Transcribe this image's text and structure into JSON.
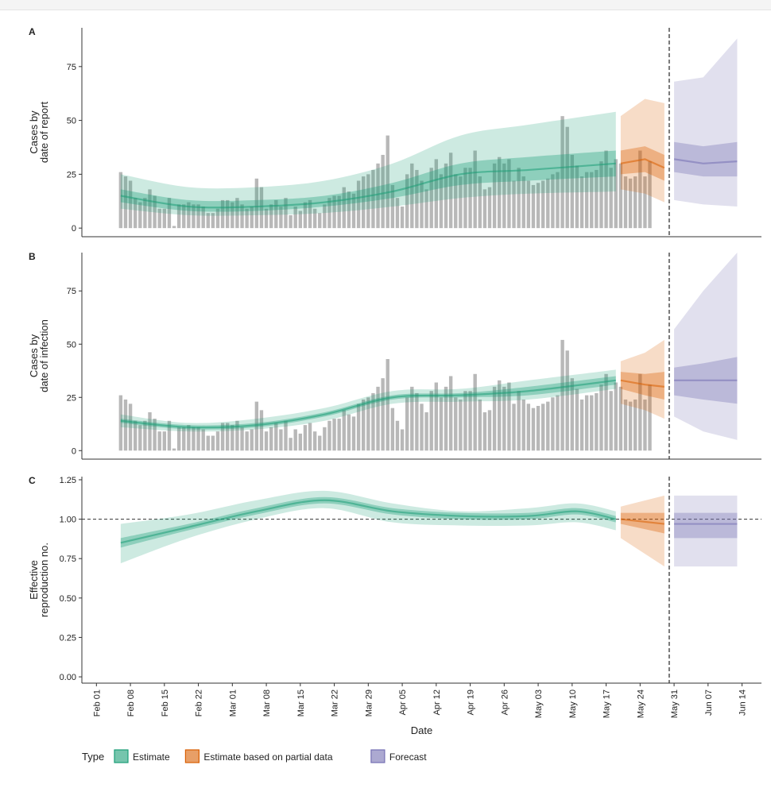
{
  "chart_data": {
    "type": "multi-panel",
    "xlabel": "Date",
    "x_ticks": [
      "Feb 01",
      "Feb 08",
      "Feb 15",
      "Feb 22",
      "Mar 01",
      "Mar 08",
      "Mar 15",
      "Mar 22",
      "Mar 29",
      "Apr 05",
      "Apr 12",
      "Apr 19",
      "Apr 26",
      "May 03",
      "May 10",
      "May 17",
      "May 24",
      "May 31",
      "Jun 07",
      "Jun 14"
    ],
    "x_range": [
      "2020-01-29",
      "2020-06-17"
    ],
    "estimate_date_range": [
      "2020-02-06",
      "2020-05-18"
    ],
    "partial_date_range": [
      "2020-05-19",
      "2020-05-28"
    ],
    "forecast_date_range": [
      "2020-05-30",
      "2020-06-12"
    ],
    "vertical_line_date": "2020-05-29",
    "legend": {
      "title": "Type",
      "position": "bottom",
      "items": [
        {
          "label": "Estimate",
          "color": "#1b9e77"
        },
        {
          "label": "Estimate based on partial data",
          "color": "#d95f02"
        },
        {
          "label": "Forecast",
          "color": "#7570b3"
        }
      ]
    },
    "panels": [
      {
        "id": "A",
        "ylabel": [
          "Cases by",
          "date of report"
        ],
        "ylim": [
          -4,
          93
        ],
        "yticks": [
          "0",
          "25",
          "50",
          "75"
        ],
        "ytick_values": [
          0,
          25,
          50,
          75
        ],
        "reference_line": null,
        "bars": [
          26,
          24,
          22,
          14,
          12,
          14,
          18,
          15,
          9,
          9,
          14,
          1,
          11,
          11,
          12,
          11,
          11,
          10,
          7,
          7,
          9,
          13,
          13,
          12,
          14,
          11,
          9,
          10,
          23,
          19,
          9,
          11,
          13,
          10,
          14,
          6,
          10,
          8,
          12,
          13,
          9,
          7,
          11,
          14,
          15,
          15,
          19,
          17,
          16,
          22,
          24,
          25,
          27,
          30,
          34,
          43,
          20,
          14,
          10,
          25,
          30,
          27,
          22,
          18,
          28,
          32,
          25,
          30,
          35,
          25,
          24,
          28,
          28,
          36,
          24,
          18,
          19,
          30,
          33,
          30,
          32,
          22,
          28,
          24,
          22,
          20,
          21,
          22,
          23,
          25,
          26,
          52,
          47,
          34,
          29,
          24,
          26,
          26,
          27,
          31,
          36,
          28,
          32,
          30,
          24,
          23,
          24,
          36,
          24,
          31
        ],
        "series": [
          {
            "name": "Estimate",
            "x": [
              "2020-02-06",
              "2020-02-20",
              "2020-03-05",
              "2020-03-19",
              "2020-04-02",
              "2020-04-16",
              "2020-04-30",
              "2020-05-18"
            ],
            "median": [
              15,
              10,
              10,
              12,
              17,
              25,
              27,
              30
            ],
            "lower_50": [
              12,
              8,
              8,
              10,
              14,
              20,
              22,
              24
            ],
            "upper_50": [
              18,
              13,
              13,
              15,
              21,
              30,
              33,
              36
            ],
            "lower_90": [
              9,
              6,
              6,
              7,
              10,
              14,
              16,
              17
            ],
            "upper_90": [
              25,
              19,
              19,
              22,
              30,
              43,
              48,
              54
            ]
          },
          {
            "name": "Estimate based on partial data",
            "x": [
              "2020-05-19",
              "2020-05-24",
              "2020-05-28"
            ],
            "median": [
              30,
              32,
              28
            ],
            "lower_50": [
              25,
              26,
              22
            ],
            "upper_50": [
              36,
              38,
              34
            ],
            "lower_90": [
              18,
              16,
              12
            ],
            "upper_90": [
              52,
              60,
              58
            ]
          },
          {
            "name": "Forecast",
            "x": [
              "2020-05-30",
              "2020-06-05",
              "2020-06-12"
            ],
            "median": [
              32,
              30,
              31
            ],
            "lower_50": [
              26,
              24,
              24
            ],
            "upper_50": [
              40,
              38,
              40
            ],
            "lower_90": [
              13,
              11,
              10
            ],
            "upper_90": [
              68,
              70,
              88
            ]
          }
        ]
      },
      {
        "id": "B",
        "ylabel": [
          "Cases by",
          "date of infection"
        ],
        "ylim": [
          -4,
          93
        ],
        "yticks": [
          "0",
          "25",
          "50",
          "75"
        ],
        "ytick_values": [
          0,
          25,
          50,
          75
        ],
        "reference_line": null,
        "bars": [
          26,
          24,
          22,
          14,
          12,
          14,
          18,
          15,
          9,
          9,
          14,
          1,
          11,
          11,
          12,
          11,
          11,
          10,
          7,
          7,
          9,
          13,
          13,
          12,
          14,
          11,
          9,
          10,
          23,
          19,
          9,
          11,
          13,
          10,
          14,
          6,
          10,
          8,
          12,
          13,
          9,
          7,
          11,
          14,
          15,
          15,
          19,
          17,
          16,
          22,
          24,
          25,
          27,
          30,
          34,
          43,
          20,
          14,
          10,
          25,
          30,
          27,
          22,
          18,
          28,
          32,
          25,
          30,
          35,
          25,
          24,
          28,
          28,
          36,
          24,
          18,
          19,
          30,
          33,
          30,
          32,
          22,
          28,
          24,
          22,
          20,
          21,
          22,
          23,
          25,
          26,
          52,
          47,
          34,
          29,
          24,
          26,
          26,
          27,
          31,
          36,
          28,
          32,
          30,
          24,
          23,
          24,
          36,
          24,
          31
        ],
        "series": [
          {
            "name": "Estimate",
            "x": [
              "2020-02-06",
              "2020-02-20",
              "2020-03-05",
              "2020-03-19",
              "2020-04-02",
              "2020-04-16",
              "2020-04-30",
              "2020-05-18"
            ],
            "median": [
              14,
              11,
              12,
              17,
              25,
              26,
              28,
              33
            ],
            "lower_50": [
              13,
              10,
              11,
              16,
              24,
              25,
              26,
              31
            ],
            "upper_50": [
              15,
              12,
              13,
              18,
              26,
              27,
              30,
              35
            ],
            "lower_90": [
              11,
              9,
              10,
              14,
              22,
              23,
              24,
              29
            ],
            "upper_90": [
              17,
              13,
              15,
              20,
              28,
              29,
              33,
              38
            ]
          },
          {
            "name": "Estimate based on partial data",
            "x": [
              "2020-05-19",
              "2020-05-24",
              "2020-05-28"
            ],
            "median": [
              33,
              31,
              30
            ],
            "lower_50": [
              29,
              26,
              24
            ],
            "upper_50": [
              37,
              36,
              37
            ],
            "lower_90": [
              22,
              19,
              15
            ],
            "upper_90": [
              42,
              46,
              52
            ]
          },
          {
            "name": "Forecast",
            "x": [
              "2020-05-30",
              "2020-06-05",
              "2020-06-12"
            ],
            "median": [
              33,
              33,
              33
            ],
            "lower_50": [
              26,
              24,
              22
            ],
            "upper_50": [
              39,
              41,
              44
            ],
            "lower_90": [
              16,
              9,
              5
            ],
            "upper_90": [
              57,
              75,
              93
            ]
          }
        ]
      },
      {
        "id": "C",
        "ylabel": [
          "Effective",
          "reproduction no."
        ],
        "ylim": [
          -0.04,
          1.27
        ],
        "yticks": [
          "0.00",
          "0.25",
          "0.50",
          "0.75",
          "1.00",
          "1.25"
        ],
        "ytick_values": [
          0,
          0.25,
          0.5,
          0.75,
          1.0,
          1.25
        ],
        "reference_line": 1.0,
        "bars": [],
        "series": [
          {
            "name": "Estimate",
            "x": [
              "2020-02-06",
              "2020-02-20",
              "2020-03-05",
              "2020-03-19",
              "2020-04-02",
              "2020-04-16",
              "2020-04-30",
              "2020-05-10",
              "2020-05-18"
            ],
            "median": [
              0.85,
              0.95,
              1.05,
              1.12,
              1.05,
              1.02,
              1.02,
              1.05,
              1.0
            ],
            "lower_50": [
              0.82,
              0.93,
              1.03,
              1.1,
              1.03,
              1.0,
              1.0,
              1.03,
              0.98
            ],
            "upper_50": [
              0.88,
              0.97,
              1.07,
              1.14,
              1.07,
              1.04,
              1.04,
              1.07,
              1.02
            ],
            "lower_90": [
              0.72,
              0.88,
              1.0,
              1.07,
              0.98,
              0.96,
              0.96,
              0.98,
              0.93
            ],
            "upper_90": [
              0.97,
              1.03,
              1.12,
              1.18,
              1.1,
              1.05,
              1.07,
              1.1,
              1.05
            ]
          },
          {
            "name": "Estimate based on partial data",
            "x": [
              "2020-05-19",
              "2020-05-28"
            ],
            "median": [
              1.0,
              0.97
            ],
            "lower_50": [
              0.97,
              0.91
            ],
            "upper_50": [
              1.04,
              1.04
            ],
            "lower_90": [
              0.88,
              0.7
            ],
            "upper_90": [
              1.08,
              1.15
            ]
          },
          {
            "name": "Forecast",
            "x": [
              "2020-05-30",
              "2020-06-12"
            ],
            "median": [
              0.97,
              0.97
            ],
            "lower_50": [
              0.88,
              0.88
            ],
            "upper_50": [
              1.04,
              1.04
            ],
            "lower_90": [
              0.7,
              0.7
            ],
            "upper_90": [
              1.15,
              1.15
            ]
          }
        ]
      }
    ]
  }
}
